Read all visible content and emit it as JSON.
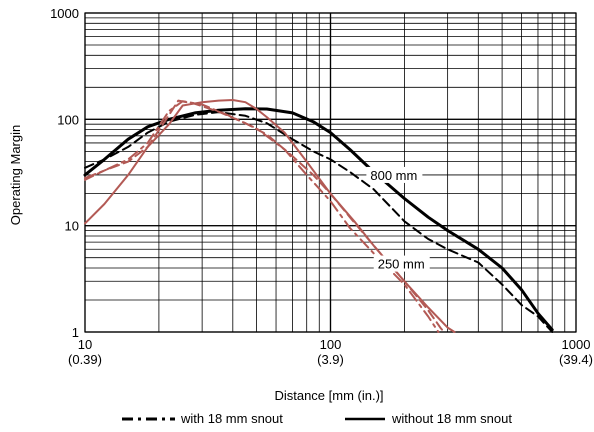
{
  "chart_data": {
    "type": "line",
    "x_scale": "log",
    "y_scale": "log",
    "xlim": [
      10,
      1000
    ],
    "ylim": [
      1,
      1000
    ],
    "xlabel": "Distance [mm (in.)]",
    "ylabel": "Operating Margin",
    "x_ticks": [
      {
        "value": 10,
        "label": "10",
        "sublabel": "(0.39)"
      },
      {
        "value": 100,
        "label": "100",
        "sublabel": "(3.9)"
      },
      {
        "value": 1000,
        "label": "1000",
        "sublabel": "(39.4)"
      }
    ],
    "y_ticks": [
      {
        "value": 1,
        "label": "1"
      },
      {
        "value": 10,
        "label": "10"
      },
      {
        "value": 100,
        "label": "100"
      },
      {
        "value": 1000,
        "label": "1000"
      }
    ],
    "grid": true,
    "legend": {
      "position": "bottom",
      "entries": [
        {
          "label": "with 18 mm snout",
          "style": "dash-dot"
        },
        {
          "label": "without 18 mm snout",
          "style": "solid"
        }
      ]
    },
    "annotations": [
      {
        "text": "800 mm",
        "x": 140,
        "y": 30
      },
      {
        "text": "250 mm",
        "x": 150,
        "y": 4.4
      }
    ],
    "colors": {
      "black": "#000000",
      "red": "#b35a55"
    },
    "series": [
      {
        "color": "#000000",
        "dash": "solid",
        "width": 3,
        "points": [
          [
            10,
            30
          ],
          [
            12,
            42
          ],
          [
            15,
            65
          ],
          [
            18,
            85
          ],
          [
            22,
            100
          ],
          [
            28,
            115
          ],
          [
            35,
            122
          ],
          [
            45,
            126
          ],
          [
            55,
            125
          ],
          [
            70,
            115
          ],
          [
            85,
            95
          ],
          [
            100,
            75
          ],
          [
            120,
            52
          ],
          [
            150,
            32
          ],
          [
            200,
            18
          ],
          [
            250,
            12
          ],
          [
            300,
            9
          ],
          [
            400,
            6
          ],
          [
            500,
            4
          ],
          [
            600,
            2.5
          ],
          [
            700,
            1.5
          ],
          [
            800,
            1.05
          ]
        ]
      },
      {
        "color": "#000000",
        "dash": "dash",
        "width": 2,
        "points": [
          [
            10,
            35
          ],
          [
            12,
            42
          ],
          [
            15,
            55
          ],
          [
            18,
            75
          ],
          [
            22,
            95
          ],
          [
            28,
            110
          ],
          [
            35,
            117
          ],
          [
            45,
            108
          ],
          [
            55,
            92
          ],
          [
            70,
            65
          ],
          [
            85,
            50
          ],
          [
            100,
            42
          ],
          [
            120,
            32
          ],
          [
            150,
            22
          ],
          [
            200,
            11
          ],
          [
            250,
            7.5
          ],
          [
            300,
            6
          ],
          [
            400,
            4.5
          ],
          [
            500,
            2.8
          ],
          [
            600,
            1.8
          ],
          [
            700,
            1.4
          ],
          [
            800,
            1
          ]
        ]
      },
      {
        "color": "#b35a55",
        "dash": "solid",
        "width": 2,
        "points": [
          [
            10,
            10.5
          ],
          [
            12,
            16
          ],
          [
            15,
            30
          ],
          [
            18,
            55
          ],
          [
            22,
            90
          ],
          [
            25,
            135
          ],
          [
            30,
            145
          ],
          [
            35,
            150
          ],
          [
            40,
            152
          ],
          [
            45,
            145
          ],
          [
            50,
            125
          ],
          [
            55,
            105
          ],
          [
            65,
            75
          ],
          [
            80,
            40
          ],
          [
            100,
            20
          ],
          [
            125,
            11
          ],
          [
            150,
            6.5
          ],
          [
            200,
            3
          ],
          [
            250,
            1.7
          ],
          [
            300,
            1.1
          ],
          [
            320,
            1
          ]
        ]
      },
      {
        "color": "#b35a55",
        "dash": "dash",
        "width": 2,
        "points": [
          [
            10,
            27
          ],
          [
            12,
            33
          ],
          [
            15,
            40
          ],
          [
            18,
            55
          ],
          [
            22,
            110
          ],
          [
            24,
            150
          ],
          [
            28,
            140
          ],
          [
            35,
            118
          ],
          [
            45,
            92
          ],
          [
            55,
            72
          ],
          [
            70,
            45
          ],
          [
            85,
            30
          ],
          [
            100,
            20
          ],
          [
            120,
            12
          ],
          [
            150,
            6.5
          ],
          [
            200,
            3
          ],
          [
            250,
            1.6
          ],
          [
            280,
            1.1
          ],
          [
            290,
            1
          ]
        ]
      },
      {
        "color": "#b35a55",
        "dash": "dashdot",
        "width": 2,
        "points": [
          [
            10,
            28
          ],
          [
            12,
            33
          ],
          [
            15,
            42
          ],
          [
            18,
            60
          ],
          [
            22,
            120
          ],
          [
            25,
            148
          ],
          [
            30,
            138
          ],
          [
            38,
            110
          ],
          [
            50,
            82
          ],
          [
            65,
            52
          ],
          [
            80,
            30
          ],
          [
            100,
            17
          ],
          [
            120,
            9.5
          ],
          [
            150,
            5.5
          ],
          [
            200,
            2.8
          ],
          [
            250,
            1.4
          ],
          [
            275,
            1
          ]
        ]
      }
    ]
  }
}
